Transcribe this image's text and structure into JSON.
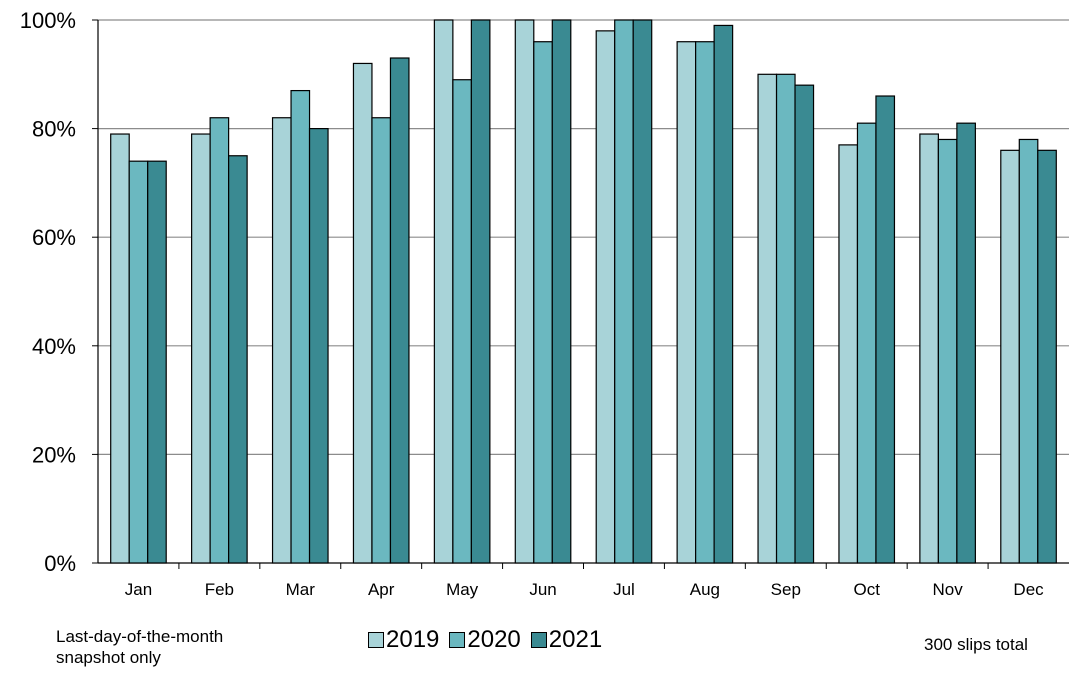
{
  "chart_data": {
    "type": "bar",
    "title": "",
    "categories": [
      "Jan",
      "Feb",
      "Mar",
      "Apr",
      "May",
      "Jun",
      "Jul",
      "Aug",
      "Sep",
      "Oct",
      "Nov",
      "Dec"
    ],
    "series": [
      {
        "name": "2019",
        "color": "#a8d3d8",
        "values": [
          79,
          79,
          82,
          92,
          100,
          100,
          98,
          96,
          90,
          77,
          79,
          76
        ]
      },
      {
        "name": "2020",
        "color": "#6bb8c0",
        "values": [
          74,
          82,
          87,
          82,
          89,
          96,
          100,
          96,
          90,
          81,
          78,
          78
        ]
      },
      {
        "name": "2021",
        "color": "#3a8a92",
        "values": [
          74,
          75,
          80,
          93,
          100,
          100,
          100,
          99,
          88,
          86,
          81,
          76
        ]
      }
    ],
    "ylim": [
      0,
      100
    ],
    "y_ticks": [
      "0%",
      "20%",
      "40%",
      "60%",
      "80%",
      "100%"
    ],
    "grid": true,
    "legend_position": "bottom-center"
  },
  "notes": {
    "left_line1": "Last-day-of-the-month",
    "left_line2": "snapshot only",
    "right": "300 slips total"
  }
}
